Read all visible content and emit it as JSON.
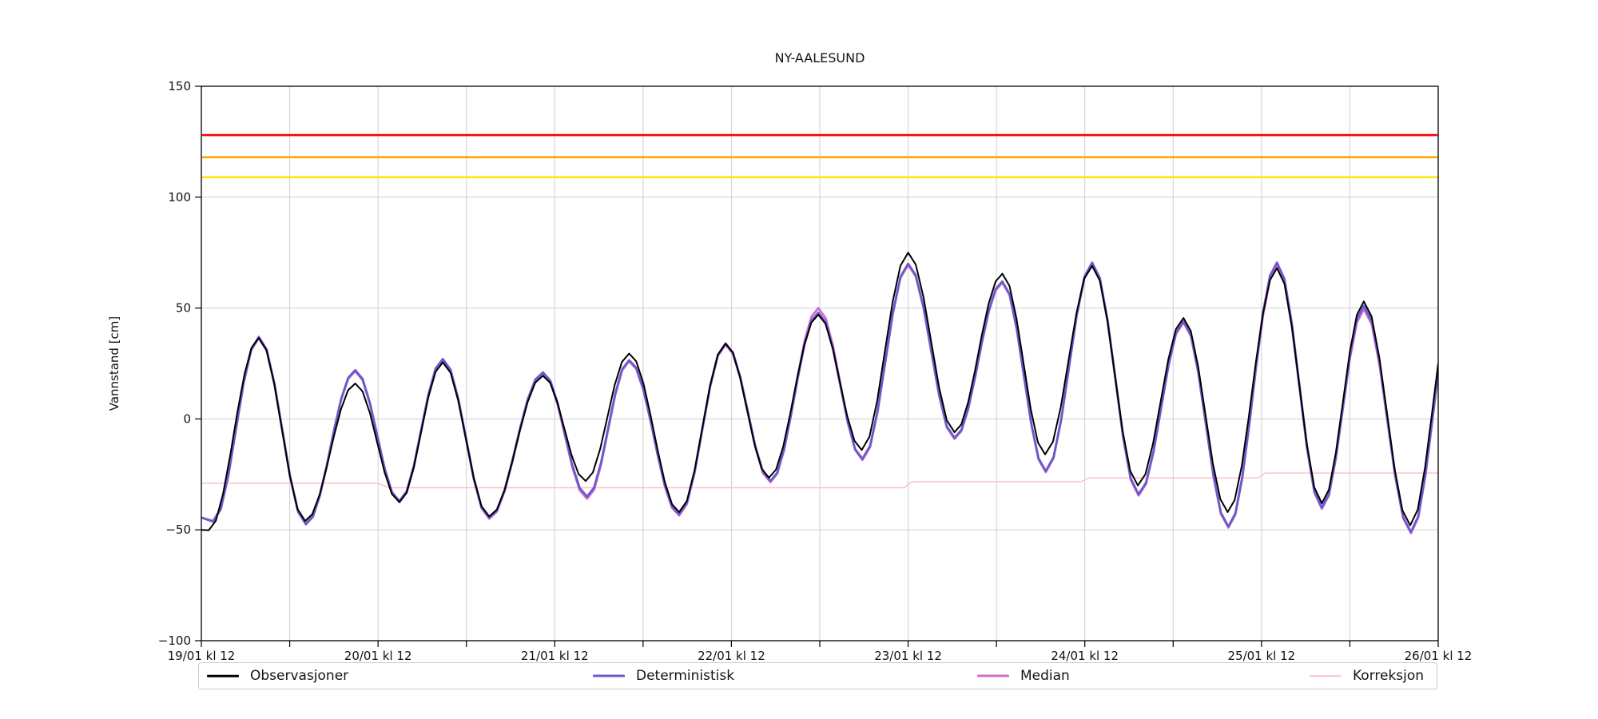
{
  "chart_data": {
    "type": "line",
    "title": "NY-AALESUND",
    "xlabel": "",
    "ylabel": "Vannstand [cm]",
    "ylim": [
      -100,
      150
    ],
    "y_ticks": [
      150,
      100,
      50,
      0,
      -50,
      -100
    ],
    "y_tick_labels": [
      "150",
      "100",
      "50",
      "0",
      "−50",
      "−100"
    ],
    "x_range_hours": [
      0,
      168
    ],
    "x_major_tick_hours": [
      0,
      24,
      48,
      72,
      96,
      120,
      144,
      168
    ],
    "x_minor_tick_hours": [
      12,
      36,
      60,
      84,
      108,
      132,
      156
    ],
    "x_tick_labels": [
      "19/01 kl 12",
      "20/01 kl 12",
      "21/01 kl 12",
      "22/01 kl 12",
      "23/01 kl 12",
      "24/01 kl 12",
      "25/01 kl 12",
      "26/01 kl 12"
    ],
    "grid": true,
    "grid_color": "#cfcfcf",
    "legend_position": "below-axis",
    "threshold_lines": [
      {
        "name": "red-warning-level",
        "value": 128,
        "color": "#ff0000",
        "width": 2.6
      },
      {
        "name": "orange-warning-level",
        "value": 118,
        "color": "#ffa500",
        "width": 2.6
      },
      {
        "name": "yellow-warning-level",
        "value": 109,
        "color": "#ffe70a",
        "width": 2.6
      }
    ],
    "series": [
      {
        "name": "Observasjoner",
        "color": "#000000",
        "width": 2.0,
        "interp": "cosine",
        "points": [
          [
            0,
            -50
          ],
          [
            1,
            -50.2
          ],
          [
            7.8,
            36.5
          ],
          [
            14.1,
            -46
          ],
          [
            20.9,
            16
          ],
          [
            26.9,
            -37.5
          ],
          [
            32.8,
            25.5
          ],
          [
            39.1,
            -44
          ],
          [
            46.4,
            19.5
          ],
          [
            52.2,
            -28
          ],
          [
            58.1,
            29.5
          ],
          [
            64.9,
            -42
          ],
          [
            71.2,
            34
          ],
          [
            77.1,
            -26.5
          ],
          [
            83.8,
            47
          ],
          [
            89.7,
            -14
          ],
          [
            96,
            75
          ],
          [
            102.3,
            -6
          ],
          [
            108.8,
            65.5
          ],
          [
            114.6,
            -16
          ],
          [
            121,
            69
          ],
          [
            127.2,
            -30
          ],
          [
            133.4,
            45.5
          ],
          [
            139.4,
            -42
          ],
          [
            146.1,
            68
          ],
          [
            152.2,
            -38
          ],
          [
            157.9,
            53
          ],
          [
            164.2,
            -48
          ],
          [
            170.3,
            58
          ]
        ]
      },
      {
        "name": "Deterministisk",
        "color": "#6a5acd",
        "width": 2.8,
        "interp": "cosine",
        "points": [
          [
            0,
            -44.5
          ],
          [
            1.6,
            -46.3
          ],
          [
            7.8,
            37
          ],
          [
            14.2,
            -47.5
          ],
          [
            20.9,
            22
          ],
          [
            26.9,
            -37
          ],
          [
            32.8,
            27
          ],
          [
            39.1,
            -44.5
          ],
          [
            46.4,
            21
          ],
          [
            52.4,
            -35
          ],
          [
            58.1,
            26.5
          ],
          [
            64.9,
            -43
          ],
          [
            71.2,
            34
          ],
          [
            77.3,
            -28
          ],
          [
            83.8,
            48
          ],
          [
            89.8,
            -18
          ],
          [
            96,
            70
          ],
          [
            102.3,
            -8.5
          ],
          [
            108.8,
            62
          ],
          [
            114.7,
            -23.5
          ],
          [
            121,
            70.5
          ],
          [
            127.3,
            -34
          ],
          [
            133.4,
            44
          ],
          [
            139.5,
            -48.5
          ],
          [
            146.1,
            70.5
          ],
          [
            152.2,
            -40
          ],
          [
            157.9,
            51
          ],
          [
            164.3,
            -51
          ],
          [
            170.3,
            56
          ]
        ]
      },
      {
        "name": "Median",
        "color": "#d46bcf",
        "width": 2.8,
        "interp": "cosine",
        "points": [
          [
            0,
            -44.5
          ],
          [
            1.6,
            -46
          ],
          [
            7.8,
            36.5
          ],
          [
            14.2,
            -47
          ],
          [
            20.9,
            21.5
          ],
          [
            26.9,
            -37.5
          ],
          [
            32.8,
            26.5
          ],
          [
            39.1,
            -45
          ],
          [
            46.4,
            20.5
          ],
          [
            52.4,
            -36
          ],
          [
            58.1,
            26
          ],
          [
            64.9,
            -43.5
          ],
          [
            71.2,
            33.5
          ],
          [
            77.3,
            -28.5
          ],
          [
            83.8,
            50
          ],
          [
            89.8,
            -18.5
          ],
          [
            96,
            69.5
          ],
          [
            102.3,
            -9
          ],
          [
            108.8,
            61.5
          ],
          [
            114.7,
            -24
          ],
          [
            121,
            70
          ],
          [
            127.3,
            -34.5
          ],
          [
            133.4,
            43.5
          ],
          [
            139.5,
            -49
          ],
          [
            146.1,
            69
          ],
          [
            152.2,
            -40.5
          ],
          [
            157.9,
            49.5
          ],
          [
            164.3,
            -51.5
          ],
          [
            170.3,
            55
          ]
        ]
      },
      {
        "name": "Korreksjon",
        "color": "#ffc0cb",
        "width": 1.5,
        "interp": "linear",
        "points": [
          [
            0,
            -29
          ],
          [
            23.9,
            -29
          ],
          [
            25.5,
            -31
          ],
          [
            95.5,
            -31
          ],
          [
            96.5,
            -28.3
          ],
          [
            119.5,
            -28.3
          ],
          [
            120.5,
            -26.6
          ],
          [
            143.5,
            -26.6
          ],
          [
            144.5,
            -24.4
          ],
          [
            168,
            -24.4
          ]
        ]
      }
    ]
  }
}
